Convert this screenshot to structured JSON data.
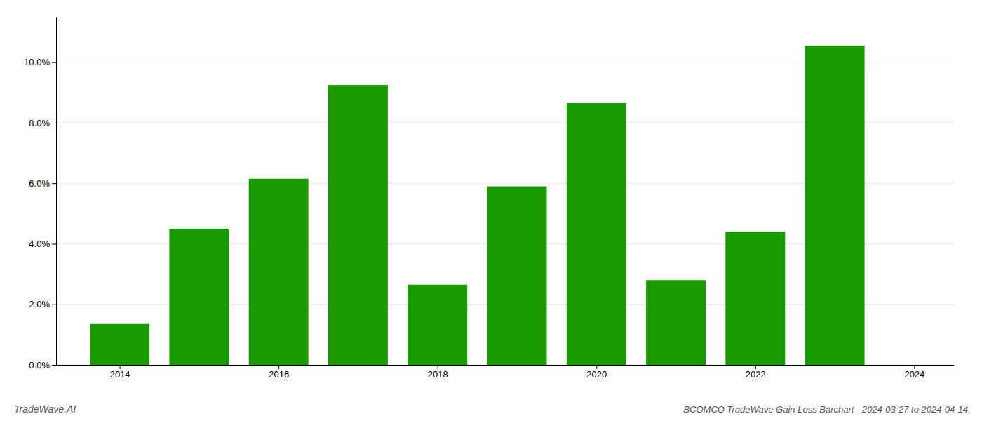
{
  "chart_data": {
    "type": "bar",
    "title": "BCOMCO TradeWave Gain Loss Barchart - 2024-03-27 to 2024-04-14",
    "annotations": [
      "TradeWave.AI"
    ],
    "x": [
      2014,
      2015,
      2016,
      2017,
      2018,
      2019,
      2020,
      2021,
      2022,
      2023
    ],
    "values": [
      0.0135,
      0.045,
      0.0615,
      0.0925,
      0.0265,
      0.059,
      0.0865,
      0.028,
      0.044,
      0.1055
    ],
    "color": "#1a9a00",
    "xlim": [
      2013.2,
      2024.5
    ],
    "xticks": [
      2014,
      2016,
      2018,
      2020,
      2022,
      2024
    ],
    "ylim": [
      0,
      0.115
    ],
    "yticks": [
      {
        "value": 0.0,
        "label": "0.0%"
      },
      {
        "value": 0.02,
        "label": "2.0%"
      },
      {
        "value": 0.04,
        "label": "4.0%"
      },
      {
        "value": 0.06,
        "label": "6.0%"
      },
      {
        "value": 0.08,
        "label": "8.0%"
      },
      {
        "value": 0.1,
        "label": "10.0%"
      }
    ],
    "grid": true
  }
}
